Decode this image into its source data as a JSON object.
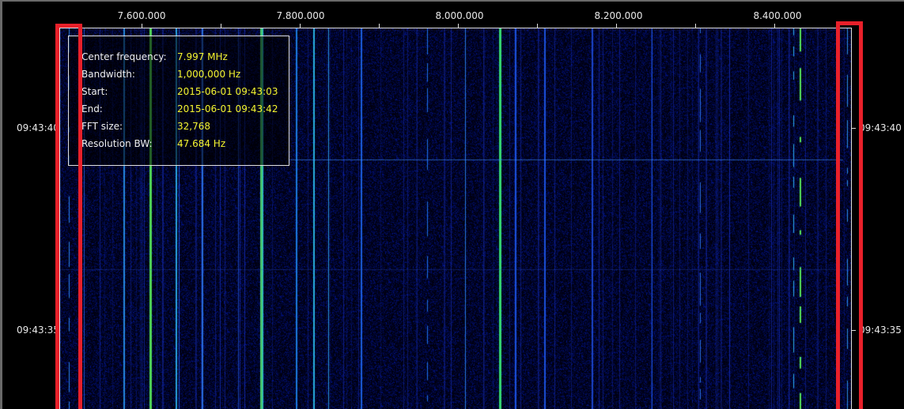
{
  "frequency_axis": {
    "tick_labels": [
      "7.600.000",
      "7.800.000",
      "8.000.000",
      "8.200.000",
      "8.400.000"
    ],
    "tick_values_hz": [
      7600000,
      7800000,
      8000000,
      8200000,
      8400000
    ],
    "range_hz": [
      7497000,
      8497000
    ]
  },
  "time_axis": {
    "tick_labels": [
      "09:43:40",
      "09:43:35"
    ]
  },
  "info_panel": {
    "rows": [
      {
        "key": "Center frequency:",
        "value": "7.997 MHz"
      },
      {
        "key": "Bandwidth:",
        "value": "1,000,000 Hz"
      },
      {
        "key": "Start:",
        "value": "2015-06-01 09:43:03"
      },
      {
        "key": "End:",
        "value": "2015-06-01 09:43:42"
      },
      {
        "key": "FFT size:",
        "value": "32,768"
      },
      {
        "key": "Resolution BW:",
        "value": "47.684 Hz"
      }
    ]
  },
  "colors": {
    "background": "#000000",
    "highlight_box": "#e8202a",
    "info_value": "#f5f530",
    "waterfall_low": "#000010",
    "waterfall_mid": "#1030e0",
    "waterfall_high": "#40ff60"
  }
}
